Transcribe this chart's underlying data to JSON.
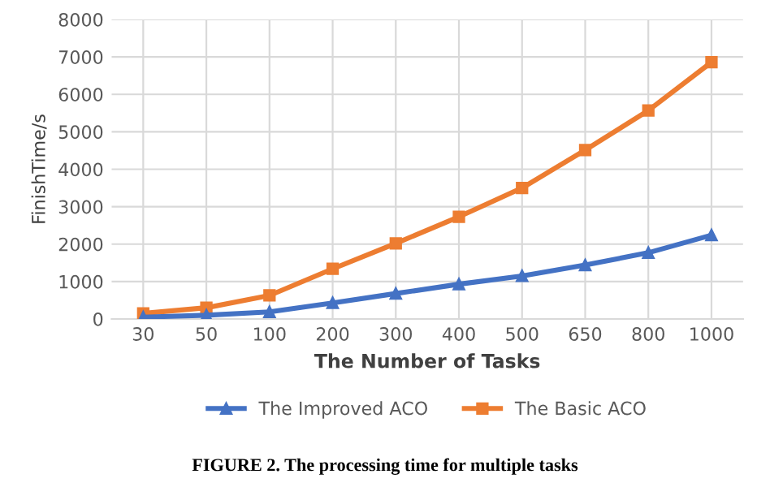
{
  "chart_data": {
    "type": "line",
    "xlabel": "The Number of Tasks",
    "ylabel": "FinishTime/s",
    "categories": [
      "30",
      "50",
      "100",
      "200",
      "300",
      "400",
      "500",
      "650",
      "800",
      "1000"
    ],
    "series": [
      {
        "name": "The Improved ACO",
        "color": "#4472c4",
        "marker": "triangle",
        "values": [
          50,
          100,
          190,
          430,
          680,
          930,
          1150,
          1440,
          1770,
          2240
        ]
      },
      {
        "name": "The Basic ACO",
        "color": "#ed7d31",
        "marker": "square",
        "values": [
          150,
          300,
          630,
          1340,
          2020,
          2730,
          3500,
          4510,
          5570,
          6860
        ]
      }
    ],
    "ylim": [
      0,
      8000
    ],
    "yticks": [
      0,
      1000,
      2000,
      3000,
      4000,
      5000,
      6000,
      7000,
      8000
    ],
    "grid": true,
    "legend": "bottom",
    "line_style": "solid",
    "annotations": [
      "FIGURE 2. The processing time for multiple tasks"
    ]
  }
}
